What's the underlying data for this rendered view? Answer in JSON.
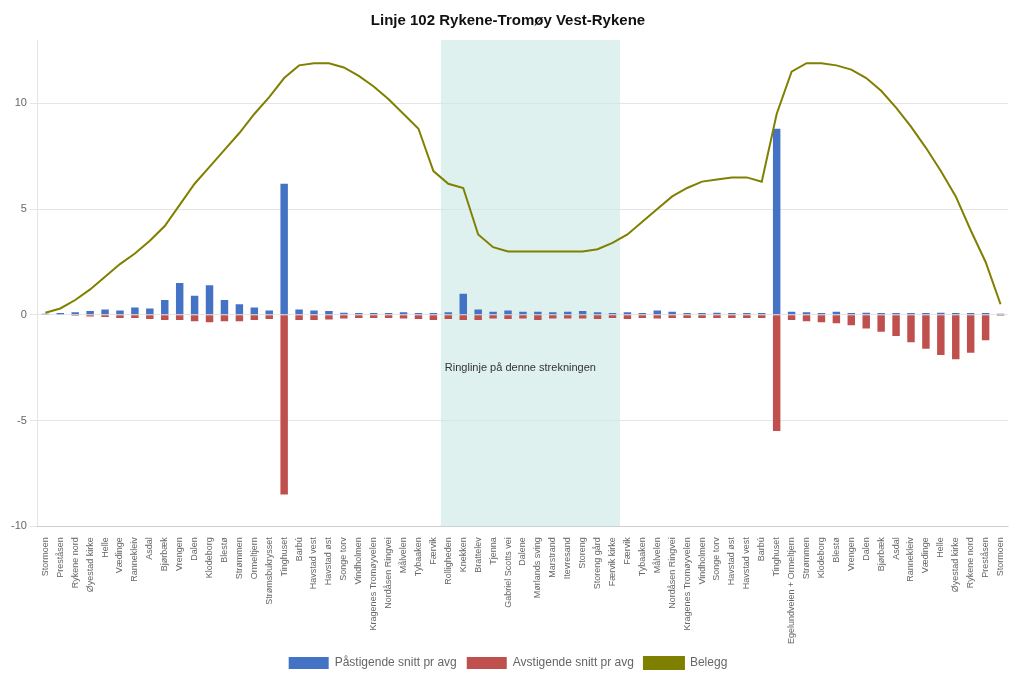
{
  "chart_data": {
    "type": "bar",
    "title": "Linje 102 Rykene-Tromøy Vest-Rykene",
    "categories": [
      "Stormoen",
      "Preståsen",
      "Rykene nord",
      "Øyestad kirke",
      "Helle",
      "Vædinge",
      "Rannekleiv",
      "Asdal",
      "Bjørbæk",
      "Vrengen",
      "Dalen",
      "Klodeborg",
      "Blestø",
      "Strømmen",
      "Ormeltjern",
      "Strømsbukrysset",
      "Tinghuset",
      "Barbú",
      "Havstad vest",
      "Havstad øst",
      "Songe torv",
      "Vindholmen",
      "Kragenes Tromøyvelen",
      "Nordåsen Ringvei",
      "Målvelen",
      "Tybaaken",
      "Færvik",
      "Rolligheden",
      "Knekken",
      "Brattelev",
      "Tjenna",
      "Gabriel Scotts vei",
      "Dalene",
      "Mørlands sving",
      "Marstrand",
      "Itevresand",
      "Storeng",
      "Storeng gård",
      "Færvik kirke",
      "Færvik",
      "Tybaaken",
      "Målvelen",
      "Nordåsen Ringvei",
      "Kragenes Tromøyvelen",
      "Vindholmen",
      "Songe torv",
      "Havstad øst",
      "Havstad vest",
      "Barbú",
      "Tinghuset",
      "Egelundveien + Ormeltjern",
      "Strømmen",
      "Klodeborg",
      "Blestø",
      "Vrengen",
      "Dalen",
      "Bjørbæk",
      "Asdal",
      "Rannekleiv",
      "Vædinge",
      "Helle",
      "Øyestad kirke",
      "Rykene nord",
      "Preståsen",
      "Stormoen"
    ],
    "series": [
      {
        "name": "Påstigende snitt pr avg",
        "color": "#4472c4",
        "values": [
          0.05,
          0.08,
          0.12,
          0.18,
          0.25,
          0.2,
          0.35,
          0.3,
          0.7,
          1.5,
          0.9,
          1.4,
          0.7,
          0.5,
          0.35,
          0.2,
          6.2,
          0.25,
          0.2,
          0.18,
          0.1,
          0.08,
          0.08,
          0.08,
          0.12,
          0.08,
          0.08,
          0.12,
          1.0,
          0.25,
          0.15,
          0.2,
          0.15,
          0.15,
          0.12,
          0.15,
          0.18,
          0.12,
          0.08,
          0.12,
          0.08,
          0.2,
          0.15,
          0.08,
          0.08,
          0.1,
          0.08,
          0.08,
          0.08,
          8.8,
          0.15,
          0.12,
          0.08,
          0.15,
          0.08,
          0.1,
          0.08,
          0.08,
          0.08,
          0.08,
          0.1,
          0.08,
          0.08,
          0.08,
          0.05
        ]
      },
      {
        "name": "Avstigende snitt pr avg",
        "color": "#c0504d",
        "values": [
          0.0,
          0.0,
          -0.05,
          -0.08,
          -0.1,
          -0.15,
          -0.15,
          -0.2,
          -0.25,
          -0.25,
          -0.3,
          -0.35,
          -0.3,
          -0.3,
          -0.25,
          -0.2,
          -8.5,
          -0.25,
          -0.25,
          -0.22,
          -0.18,
          -0.15,
          -0.15,
          -0.15,
          -0.18,
          -0.2,
          -0.25,
          -0.2,
          -0.25,
          -0.25,
          -0.18,
          -0.2,
          -0.18,
          -0.25,
          -0.18,
          -0.18,
          -0.18,
          -0.2,
          -0.15,
          -0.2,
          -0.15,
          -0.18,
          -0.15,
          -0.15,
          -0.15,
          -0.15,
          -0.15,
          -0.15,
          -0.15,
          -5.5,
          -0.25,
          -0.3,
          -0.35,
          -0.4,
          -0.5,
          -0.65,
          -0.8,
          -1.0,
          -1.3,
          -1.6,
          -1.9,
          -2.1,
          -1.8,
          -1.2,
          -0.05
        ]
      },
      {
        "name": "Belegg",
        "type": "line",
        "color": "#808000",
        "values": [
          0.1,
          0.3,
          0.7,
          1.2,
          1.8,
          2.4,
          2.9,
          3.5,
          4.2,
          5.2,
          6.2,
          7.0,
          7.8,
          8.6,
          9.5,
          10.3,
          11.2,
          11.8,
          11.9,
          11.9,
          11.7,
          11.3,
          10.8,
          10.2,
          9.5,
          8.8,
          6.8,
          6.2,
          6.0,
          3.8,
          3.2,
          3.0,
          3.0,
          3.0,
          3.0,
          3.0,
          3.0,
          3.1,
          3.4,
          3.8,
          4.4,
          5.0,
          5.6,
          6.0,
          6.3,
          6.4,
          6.5,
          6.5,
          6.3,
          9.5,
          11.5,
          11.9,
          11.9,
          11.8,
          11.6,
          11.2,
          10.6,
          9.8,
          8.9,
          7.9,
          6.8,
          5.6,
          4.0,
          2.5,
          0.5
        ]
      }
    ],
    "annotations": [
      {
        "text": "Ringlinje på denne strekningen",
        "x_start": 27,
        "x_end": 38,
        "y": -2.5,
        "color": "#c8e8e5"
      }
    ],
    "ylim": [
      -10,
      13
    ],
    "yticks": [
      -10,
      -5,
      0,
      5,
      10
    ],
    "grid": true,
    "legend": "bottom"
  }
}
